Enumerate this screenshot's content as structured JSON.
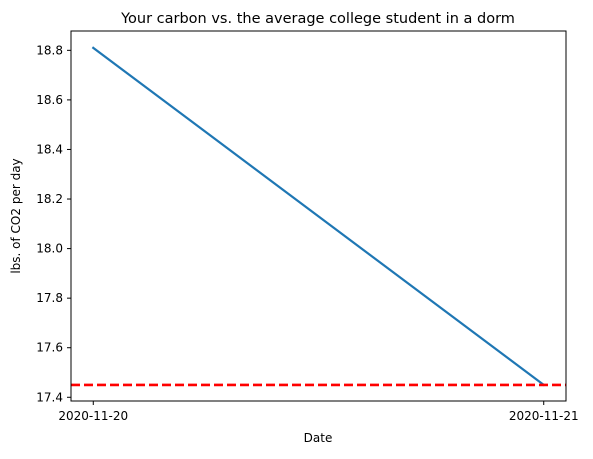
{
  "chart_data": {
    "type": "line",
    "title": "Your carbon vs. the average college student in a dorm",
    "xlabel": "Date",
    "ylabel": "lbs. of CO2 per day",
    "x": [
      "2020-11-20",
      "2020-11-21"
    ],
    "series": [
      {
        "values": [
          18.81,
          17.45
        ],
        "color": "#1f77b4",
        "style": "solid"
      }
    ],
    "reference_lines": [
      {
        "orientation": "horizontal",
        "value": 17.45,
        "color": "#ff0000",
        "style": "dashed"
      }
    ],
    "yticks": [
      17.4,
      17.6,
      17.8,
      18.0,
      18.2,
      18.4,
      18.6,
      18.8
    ],
    "ytick_labels": [
      "17.4",
      "17.6",
      "17.8",
      "18.0",
      "18.2",
      "18.4",
      "18.6",
      "18.8"
    ],
    "xtick_labels": [
      "2020-11-20",
      "2020-11-21"
    ],
    "ylim": [
      17.385,
      18.878
    ],
    "grid": false,
    "legend": false
  }
}
